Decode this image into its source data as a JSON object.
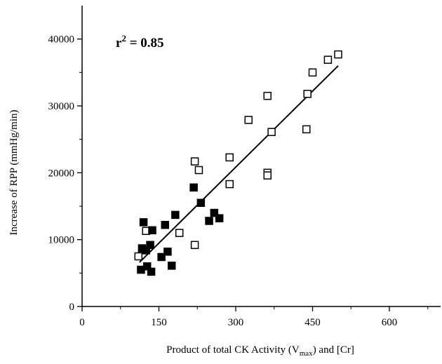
{
  "chart_data": {
    "type": "scatter",
    "title": "",
    "xlabel": {
      "prefix": "Product of total CK Activity (V",
      "subscript": "max",
      "suffix": ") and [Cr]"
    },
    "ylabel": "Increase of RPP (mmHg/min)",
    "xlim": [
      0,
      700
    ],
    "ylim": [
      0,
      45000
    ],
    "x_ticks": [
      0,
      150,
      300,
      450,
      600
    ],
    "x_tick_labels": [
      "0",
      "150",
      "300",
      "450",
      "600"
    ],
    "y_ticks": [
      0,
      10000,
      20000,
      30000,
      40000
    ],
    "y_tick_labels": [
      "0",
      "10000",
      "20000",
      "30000",
      "40000"
    ],
    "grid": false,
    "legend": "none",
    "annotation": {
      "base": "r",
      "sup": "2",
      "rest": " = 0.85"
    },
    "series": [
      {
        "marker": "open-square",
        "color": "#000000",
        "points": [
          [
            110,
            7500
          ],
          [
            125,
            11300
          ],
          [
            190,
            11000
          ],
          [
            220,
            9200
          ],
          [
            220,
            21700
          ],
          [
            228,
            20400
          ],
          [
            288,
            22300
          ],
          [
            288,
            18300
          ],
          [
            325,
            27900
          ],
          [
            362,
            31500
          ],
          [
            370,
            26100
          ],
          [
            362,
            20000
          ],
          [
            362,
            19600
          ],
          [
            438,
            26500
          ],
          [
            440,
            31800
          ],
          [
            450,
            35000
          ],
          [
            480,
            36900
          ],
          [
            500,
            37700
          ]
        ]
      },
      {
        "marker": "filled-square",
        "color": "#000000",
        "points": [
          [
            115,
            5500
          ],
          [
            117,
            8700
          ],
          [
            120,
            12600
          ],
          [
            125,
            8400
          ],
          [
            127,
            6000
          ],
          [
            133,
            9200
          ],
          [
            135,
            5200
          ],
          [
            137,
            11400
          ],
          [
            155,
            7400
          ],
          [
            162,
            12200
          ],
          [
            167,
            8200
          ],
          [
            175,
            6100
          ],
          [
            182,
            13700
          ],
          [
            218,
            17800
          ],
          [
            232,
            15500
          ],
          [
            248,
            12800
          ],
          [
            258,
            14000
          ],
          [
            268,
            13200
          ]
        ]
      }
    ],
    "fit_line": {
      "x": [
        112,
        500
      ],
      "y": [
        6600,
        36000
      ],
      "color": "#000000"
    }
  }
}
